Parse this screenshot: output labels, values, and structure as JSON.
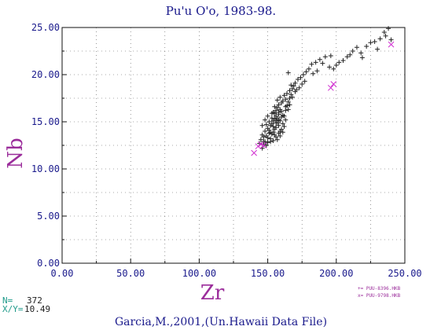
{
  "chart_data": {
    "type": "scatter",
    "title": "Pu'u O'o, 1983-98.",
    "xlabel": "Zr",
    "ylabel": "Nb",
    "xlim": [
      0,
      250
    ],
    "ylim": [
      0,
      25
    ],
    "grid": "dotted",
    "x_ticks": [
      "0.00",
      "50.00",
      "100.00",
      "150.00",
      "200.00",
      "250.00"
    ],
    "y_ticks": [
      "0.00",
      "5.00",
      "10.00",
      "15.00",
      "20.00",
      "25.00"
    ],
    "legend": {
      "placement": "bottom-right",
      "entries": [
        "+= PUU-8396.HKB",
        "x= PUU-9798.HKB"
      ]
    },
    "series": [
      {
        "marker": "+",
        "color": "#222222",
        "points": [
          [
            146,
            12.2
          ],
          [
            147,
            12.6
          ],
          [
            148,
            12.9
          ],
          [
            145,
            13.1
          ],
          [
            150,
            13.3
          ],
          [
            149,
            13.5
          ],
          [
            152,
            13.2
          ],
          [
            153,
            13.7
          ],
          [
            154,
            13.9
          ],
          [
            151,
            14.1
          ],
          [
            155,
            14.2
          ],
          [
            156,
            14.4
          ],
          [
            148,
            14.0
          ],
          [
            147,
            13.4
          ],
          [
            150,
            14.3
          ],
          [
            152,
            14.6
          ],
          [
            153,
            14.8
          ],
          [
            154,
            15.1
          ],
          [
            155,
            15.3
          ],
          [
            156,
            15.6
          ],
          [
            157,
            15.4
          ],
          [
            158,
            15.8
          ],
          [
            157,
            14.9
          ],
          [
            158,
            14.6
          ],
          [
            159,
            15.1
          ],
          [
            160,
            15.5
          ],
          [
            155,
            15.9
          ],
          [
            156,
            16.2
          ],
          [
            157,
            16.5
          ],
          [
            158,
            16.8
          ],
          [
            159,
            16.3
          ],
          [
            154,
            16.0
          ],
          [
            153,
            15.4
          ],
          [
            151,
            15.0
          ],
          [
            149,
            14.7
          ],
          [
            152,
            12.9
          ],
          [
            154,
            13.0
          ],
          [
            156,
            13.4
          ],
          [
            158,
            13.8
          ],
          [
            160,
            14.2
          ],
          [
            161,
            14.8
          ],
          [
            162,
            15.6
          ],
          [
            163,
            16.2
          ],
          [
            164,
            16.7
          ],
          [
            165,
            17.1
          ],
          [
            166,
            17.5
          ],
          [
            165,
            16.3
          ],
          [
            163,
            15.2
          ],
          [
            160,
            16.1
          ],
          [
            161,
            17.2
          ],
          [
            162,
            17.8
          ],
          [
            164,
            18.0
          ],
          [
            166,
            18.3
          ],
          [
            168,
            18.5
          ],
          [
            167,
            17.9
          ],
          [
            169,
            18.8
          ],
          [
            170,
            19.1
          ],
          [
            165,
            20.2
          ],
          [
            172,
            19.5
          ],
          [
            174,
            19.7
          ],
          [
            176,
            20.0
          ],
          [
            178,
            20.3
          ],
          [
            180,
            20.6
          ],
          [
            182,
            21.1
          ],
          [
            185,
            21.3
          ],
          [
            188,
            21.6
          ],
          [
            190,
            21.2
          ],
          [
            192,
            21.9
          ],
          [
            195,
            20.8
          ],
          [
            198,
            20.6
          ],
          [
            200,
            21.0
          ],
          [
            205,
            21.5
          ],
          [
            208,
            21.9
          ],
          [
            210,
            22.1
          ],
          [
            212,
            22.5
          ],
          [
            215,
            22.9
          ],
          [
            218,
            22.3
          ],
          [
            222,
            23.0
          ],
          [
            225,
            23.4
          ],
          [
            228,
            23.5
          ],
          [
            232,
            23.8
          ],
          [
            235,
            24.5
          ],
          [
            238,
            24.9
          ],
          [
            240,
            23.7
          ],
          [
            236,
            24.1
          ],
          [
            144,
            12.7
          ],
          [
            146,
            13.6
          ],
          [
            151,
            13.8
          ],
          [
            157,
            13.1
          ],
          [
            159,
            13.5
          ],
          [
            161,
            13.9
          ],
          [
            156,
            14.9
          ],
          [
            153,
            15.9
          ],
          [
            155,
            16.6
          ],
          [
            160,
            17.0
          ],
          [
            162,
            14.5
          ],
          [
            150,
            15.6
          ],
          [
            148,
            15.2
          ],
          [
            146,
            14.6
          ],
          [
            158,
            16.0
          ],
          [
            157,
            17.3
          ],
          [
            159,
            17.6
          ],
          [
            163,
            17.4
          ],
          [
            167,
            18.9
          ],
          [
            171,
            18.4
          ],
          [
            147,
            12.9
          ],
          [
            149,
            12.5
          ],
          [
            150,
            12.8
          ],
          [
            152,
            13.9
          ],
          [
            154,
            14.5
          ],
          [
            155,
            13.6
          ],
          [
            156,
            15.1
          ],
          [
            158,
            15.2
          ],
          [
            159,
            14.0
          ],
          [
            161,
            15.7
          ],
          [
            163,
            16.6
          ],
          [
            166,
            16.8
          ],
          [
            168,
            17.6
          ],
          [
            170,
            18.2
          ],
          [
            173,
            18.6
          ],
          [
            175,
            19.0
          ],
          [
            177,
            19.3
          ],
          [
            183,
            20.1
          ],
          [
            186,
            20.4
          ],
          [
            196,
            22.0
          ],
          [
            202,
            21.3
          ],
          [
            219,
            21.8
          ],
          [
            230,
            22.7
          ]
        ]
      },
      {
        "marker": "x",
        "color": "#d12fd1",
        "points": [
          [
            140,
            11.7
          ],
          [
            143,
            12.4
          ],
          [
            145,
            12.6
          ],
          [
            147,
            12.5
          ],
          [
            196,
            18.6
          ],
          [
            198,
            19.0
          ],
          [
            240,
            23.2
          ]
        ]
      }
    ]
  },
  "footer": {
    "n_label": "N=",
    "n_value": "372",
    "xy_label": "X/Y=",
    "xy_value": "10.49",
    "source": "Garcia,M.,2001,(Un.Hawaii Data File)"
  }
}
